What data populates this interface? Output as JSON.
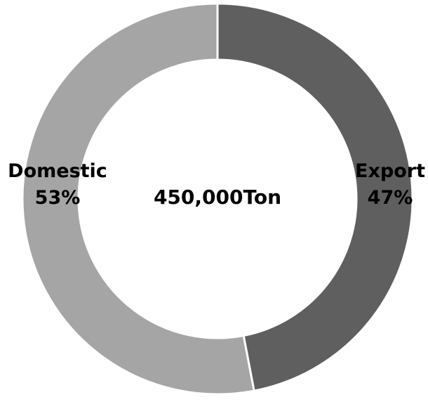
{
  "chart_data": {
    "type": "pie",
    "donut": true,
    "center_label": "450,000Ton",
    "slices": [
      {
        "name": "Export",
        "value": 47,
        "label": "47%",
        "color": "#5f5f5f"
      },
      {
        "name": "Domestic",
        "value": 53,
        "label": "53%",
        "color": "#a5a5a5"
      }
    ],
    "start": "12 o'clock",
    "direction": "clockwise",
    "legend": "none"
  }
}
